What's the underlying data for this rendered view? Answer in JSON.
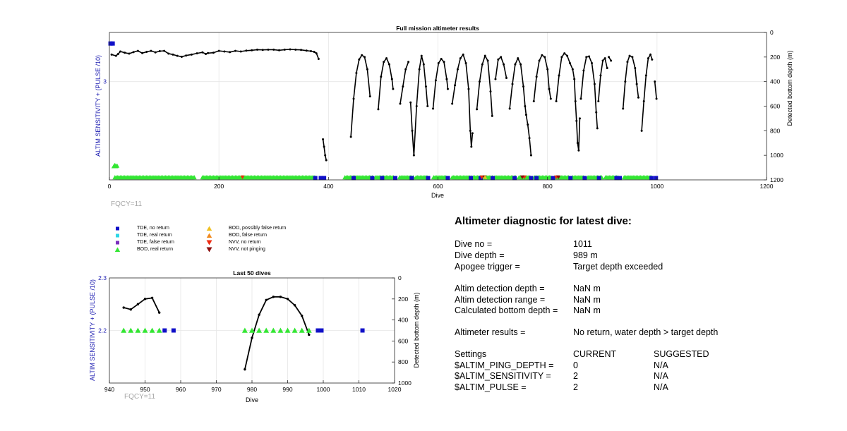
{
  "chart_data": [
    {
      "name": "full-mission",
      "type": "scatter",
      "title": "Full mission altimeter results",
      "xlabel": "Dive",
      "ylabel_left": "ALTIM SENSITIVITY + (PULSE /10)",
      "ylabel_right": "Detected bottom depth (m)",
      "xlim": [
        0,
        1200
      ],
      "xticks": [
        0,
        200,
        400,
        600,
        800,
        1000,
        1200
      ],
      "ylim_right": [
        0,
        1200
      ],
      "yticks_right": [
        0,
        200,
        400,
        600,
        800,
        1000,
        1200
      ],
      "yticks_left": [
        "3"
      ],
      "grid": true,
      "annotation": "FQCY=11",
      "depth_segments": [
        [
          [
            4,
            180
          ],
          [
            12,
            190
          ],
          [
            16,
            175
          ],
          [
            20,
            155
          ],
          [
            28,
            165
          ],
          [
            36,
            172
          ],
          [
            44,
            160
          ],
          [
            52,
            150
          ],
          [
            60,
            168
          ],
          [
            68,
            158
          ],
          [
            76,
            150
          ],
          [
            84,
            162
          ],
          [
            92,
            152
          ],
          [
            100,
            150
          ],
          [
            108,
            172
          ],
          [
            116,
            180
          ],
          [
            124,
            190
          ],
          [
            132,
            198
          ],
          [
            140,
            188
          ],
          [
            150,
            180
          ],
          [
            160,
            170
          ],
          [
            170,
            162
          ],
          [
            176,
            175
          ],
          [
            180,
            168
          ],
          [
            190,
            165
          ],
          [
            200,
            150
          ],
          [
            210,
            155
          ],
          [
            220,
            160
          ],
          [
            230,
            150
          ],
          [
            240,
            155
          ],
          [
            250,
            148
          ],
          [
            260,
            145
          ],
          [
            270,
            140
          ],
          [
            280,
            142
          ],
          [
            290,
            140
          ],
          [
            300,
            140
          ],
          [
            310,
            145
          ],
          [
            320,
            140
          ],
          [
            330,
            138
          ],
          [
            340,
            140
          ],
          [
            350,
            142
          ],
          [
            360,
            148
          ],
          [
            368,
            152
          ],
          [
            374,
            158
          ],
          [
            378,
            170
          ],
          [
            382,
            215
          ]
        ],
        [
          [
            390,
            870
          ],
          [
            392,
            930
          ],
          [
            394,
            1000
          ],
          [
            396,
            1040
          ]
        ],
        [
          [
            441,
            850
          ],
          [
            446,
            540
          ],
          [
            451,
            330
          ],
          [
            456,
            220
          ],
          [
            461,
            185
          ],
          [
            466,
            200
          ],
          [
            471,
            300
          ],
          [
            476,
            520
          ]
        ],
        [
          [
            491,
            625
          ],
          [
            496,
            360
          ],
          [
            501,
            240
          ],
          [
            506,
            210
          ],
          [
            511,
            260
          ],
          [
            516,
            380
          ],
          [
            518,
            460
          ]
        ],
        [
          [
            531,
            580
          ],
          [
            536,
            440
          ],
          [
            541,
            300
          ],
          [
            546,
            240
          ]
        ],
        [
          [
            550,
            570
          ],
          [
            553,
            800
          ],
          [
            556,
            1000
          ],
          [
            561,
            600
          ],
          [
            566,
            300
          ],
          [
            570,
            190
          ],
          [
            574,
            260
          ],
          [
            578,
            440
          ],
          [
            581,
            600
          ]
        ],
        [
          [
            591,
            620
          ],
          [
            596,
            390
          ],
          [
            601,
            250
          ],
          [
            606,
            215
          ],
          [
            611,
            240
          ],
          [
            616,
            380
          ],
          [
            618,
            460
          ]
        ],
        [
          [
            626,
            580
          ],
          [
            631,
            430
          ],
          [
            636,
            300
          ],
          [
            641,
            210
          ],
          [
            646,
            180
          ],
          [
            651,
            250
          ],
          [
            656,
            460
          ],
          [
            659,
            800
          ],
          [
            661,
            930
          ],
          [
            663,
            820
          ]
        ],
        [
          [
            671,
            625
          ],
          [
            676,
            400
          ],
          [
            681,
            260
          ],
          [
            686,
            190
          ],
          [
            691,
            230
          ],
          [
            696,
            480
          ],
          [
            699,
            680
          ]
        ],
        [
          [
            705,
            380
          ],
          [
            710,
            220
          ],
          [
            715,
            200
          ],
          [
            720,
            260
          ],
          [
            725,
            370
          ]
        ],
        [
          [
            731,
            620
          ],
          [
            736,
            420
          ],
          [
            741,
            260
          ],
          [
            746,
            210
          ],
          [
            751,
            260
          ],
          [
            756,
            440
          ],
          [
            759,
            600
          ],
          [
            761,
            670
          ],
          [
            764,
            750
          ],
          [
            767,
            860
          ],
          [
            770,
            1000
          ]
        ],
        [
          [
            775,
            560
          ],
          [
            780,
            360
          ],
          [
            785,
            230
          ],
          [
            790,
            185
          ],
          [
            795,
            200
          ],
          [
            800,
            300
          ],
          [
            803,
            460
          ],
          [
            806,
            540
          ]
        ],
        [
          [
            816,
            560
          ],
          [
            821,
            350
          ],
          [
            826,
            200
          ],
          [
            831,
            170
          ],
          [
            836,
            190
          ],
          [
            841,
            250
          ],
          [
            846,
            300
          ],
          [
            849,
            380
          ],
          [
            851,
            560
          ],
          [
            853,
            720
          ],
          [
            855,
            900
          ],
          [
            857,
            960
          ],
          [
            859,
            700
          ]
        ],
        [
          [
            861,
            540
          ],
          [
            866,
            310
          ],
          [
            871,
            200
          ],
          [
            876,
            195
          ],
          [
            881,
            250
          ],
          [
            886,
            420
          ],
          [
            889,
            650
          ],
          [
            891,
            780
          ]
        ],
        [
          [
            893,
            560
          ],
          [
            897,
            350
          ],
          [
            901,
            230
          ],
          [
            905,
            210
          ],
          [
            909,
            290
          ]
        ],
        [
          [
            912,
            200
          ],
          [
            916,
            230
          ]
        ],
        [
          [
            938,
            620
          ],
          [
            942,
            400
          ],
          [
            946,
            240
          ],
          [
            950,
            190
          ],
          [
            955,
            200
          ],
          [
            960,
            290
          ],
          [
            963,
            420
          ],
          [
            966,
            530
          ]
        ],
        [
          [
            972,
            800
          ],
          [
            976,
            560
          ],
          [
            980,
            350
          ],
          [
            984,
            210
          ],
          [
            988,
            180
          ],
          [
            991,
            220
          ]
        ],
        [
          [
            996,
            400
          ],
          [
            999,
            540
          ]
        ]
      ],
      "bod_real_return_ranges": [
        [
          10,
          155
        ],
        [
          170,
          375
        ],
        [
          430,
          480
        ],
        [
          486,
          520
        ],
        [
          530,
          555
        ],
        [
          560,
          582
        ],
        [
          592,
          616
        ],
        [
          626,
          660
        ],
        [
          662,
          700
        ],
        [
          704,
          742
        ],
        [
          748,
          770
        ],
        [
          776,
          808
        ],
        [
          816,
          840
        ],
        [
          846,
          868
        ],
        [
          874,
          900
        ],
        [
          906,
          930
        ],
        [
          940,
          990
        ]
      ],
      "bod_real_return_cluster": [
        [
          8,
          1090
        ],
        [
          10,
          1080
        ],
        [
          12,
          1090
        ],
        [
          14,
          1085
        ]
      ],
      "tde_no_return": [
        [
          2,
          90
        ],
        [
          6,
          90
        ],
        [
          376,
          1185
        ],
        [
          386,
          1185
        ],
        [
          392,
          1185
        ],
        [
          446,
          1185
        ],
        [
          480,
          1185
        ],
        [
          498,
          1185
        ],
        [
          522,
          1185
        ],
        [
          552,
          1185
        ],
        [
          582,
          1185
        ],
        [
          618,
          1185
        ],
        [
          660,
          1185
        ],
        [
          678,
          1185
        ],
        [
          700,
          1185
        ],
        [
          740,
          1185
        ],
        [
          770,
          1185
        ],
        [
          780,
          1185
        ],
        [
          810,
          1185
        ],
        [
          842,
          1185
        ],
        [
          868,
          1185
        ],
        [
          894,
          1185
        ],
        [
          926,
          1185
        ],
        [
          932,
          1185
        ],
        [
          990,
          1185
        ],
        [
          998,
          1185
        ]
      ],
      "nvv_no_return": [
        [
          243,
          1178
        ],
        [
          680,
          1178
        ],
        [
          758,
          1178
        ],
        [
          816,
          1178
        ]
      ],
      "nvv_not_pinging": [
        [
          685,
          1178
        ],
        [
          754,
          1178
        ],
        [
          820,
          1178
        ]
      ],
      "bod_possibly_false": [
        [
          686,
          1178
        ]
      ]
    },
    {
      "name": "last-50",
      "type": "scatter",
      "title": "Last 50 dives",
      "xlabel": "Dive",
      "ylabel_left": "ALTIM SENSITIVITY + (PULSE /10)",
      "ylabel_right": "Detected bottom depth (m)",
      "xlim": [
        940,
        1020
      ],
      "xticks": [
        940,
        950,
        960,
        970,
        980,
        990,
        1000,
        1010,
        1020
      ],
      "ylim_left": [
        2.1,
        2.3
      ],
      "yticks_left": [
        "2.2",
        "2.3"
      ],
      "ylim_right": [
        1000,
        0
      ],
      "yticks_right": [
        0,
        200,
        400,
        600,
        800,
        1000
      ],
      "grid": true,
      "annotation": "FQCY=11",
      "depth_segments": [
        [
          [
            944,
            282
          ],
          [
            946,
            300
          ],
          [
            948,
            250
          ],
          [
            950,
            200
          ],
          [
            952,
            190
          ],
          [
            954,
            330
          ]
        ],
        [
          [
            978,
            870
          ],
          [
            980,
            570
          ],
          [
            982,
            350
          ],
          [
            984,
            210
          ],
          [
            986,
            180
          ],
          [
            988,
            180
          ],
          [
            990,
            200
          ],
          [
            992,
            260
          ],
          [
            994,
            360
          ],
          [
            996,
            540
          ]
        ]
      ],
      "bod_real_return": [
        944,
        946,
        948,
        950,
        952,
        954,
        978,
        980,
        982,
        984,
        986,
        988,
        990,
        992,
        994,
        996
      ],
      "tde_no_return": [
        955.5,
        958,
        998.5,
        999.5,
        1011
      ]
    }
  ],
  "legend": {
    "items": [
      {
        "label": "TDE, no return",
        "marker": "square",
        "color": "#1010c8"
      },
      {
        "label": "TDE, real return",
        "marker": "square",
        "color": "#2ed6e6"
      },
      {
        "label": "TDE, false return",
        "marker": "square",
        "color": "#7b2fbe"
      },
      {
        "label": "BOD, real return",
        "marker": "triangle-up",
        "color": "#33e633"
      },
      {
        "label": "BOD, possibly false return",
        "marker": "triangle-up",
        "color": "#f0c020"
      },
      {
        "label": "BOD, false return",
        "marker": "triangle-up",
        "color": "#f08a20"
      },
      {
        "label": "NVV, no return",
        "marker": "triangle-down",
        "color": "#ee2a10"
      },
      {
        "label": "NVV, not pinging",
        "marker": "triangle-down",
        "color": "#8b0d0d"
      }
    ]
  },
  "diagnostic": {
    "title": "Altimeter diagnostic for latest dive:",
    "rows": [
      {
        "label": "Dive no =",
        "value": "1011"
      },
      {
        "label": "Dive depth =",
        "value": "989 m"
      },
      {
        "label": "Apogee trigger =",
        "value": "Target depth exceeded"
      },
      {
        "label": "Altim detection depth =",
        "value": "NaN m"
      },
      {
        "label": "Altim detection range =",
        "value": "NaN m"
      },
      {
        "label": "Calculated bottom depth =",
        "value": "NaN m"
      },
      {
        "label": "Altimeter results =",
        "value": "No return, water depth > target depth"
      }
    ],
    "settings": {
      "header": "Settings",
      "current": "CURRENT",
      "suggested": "SUGGESTED",
      "rows": [
        {
          "label": "$ALTIM_PING_DEPTH =",
          "current": "0",
          "suggested": "N/A"
        },
        {
          "label": "$ALTIM_SENSITIVITY =",
          "current": "2",
          "suggested": "N/A"
        },
        {
          "label": "$ALTIM_PULSE =",
          "current": "2",
          "suggested": "N/A"
        }
      ]
    }
  },
  "colors": {
    "left_axis_label": "#1a1ab0",
    "grid": "#e6e6e6",
    "fqcy": "#a6a6a6"
  }
}
